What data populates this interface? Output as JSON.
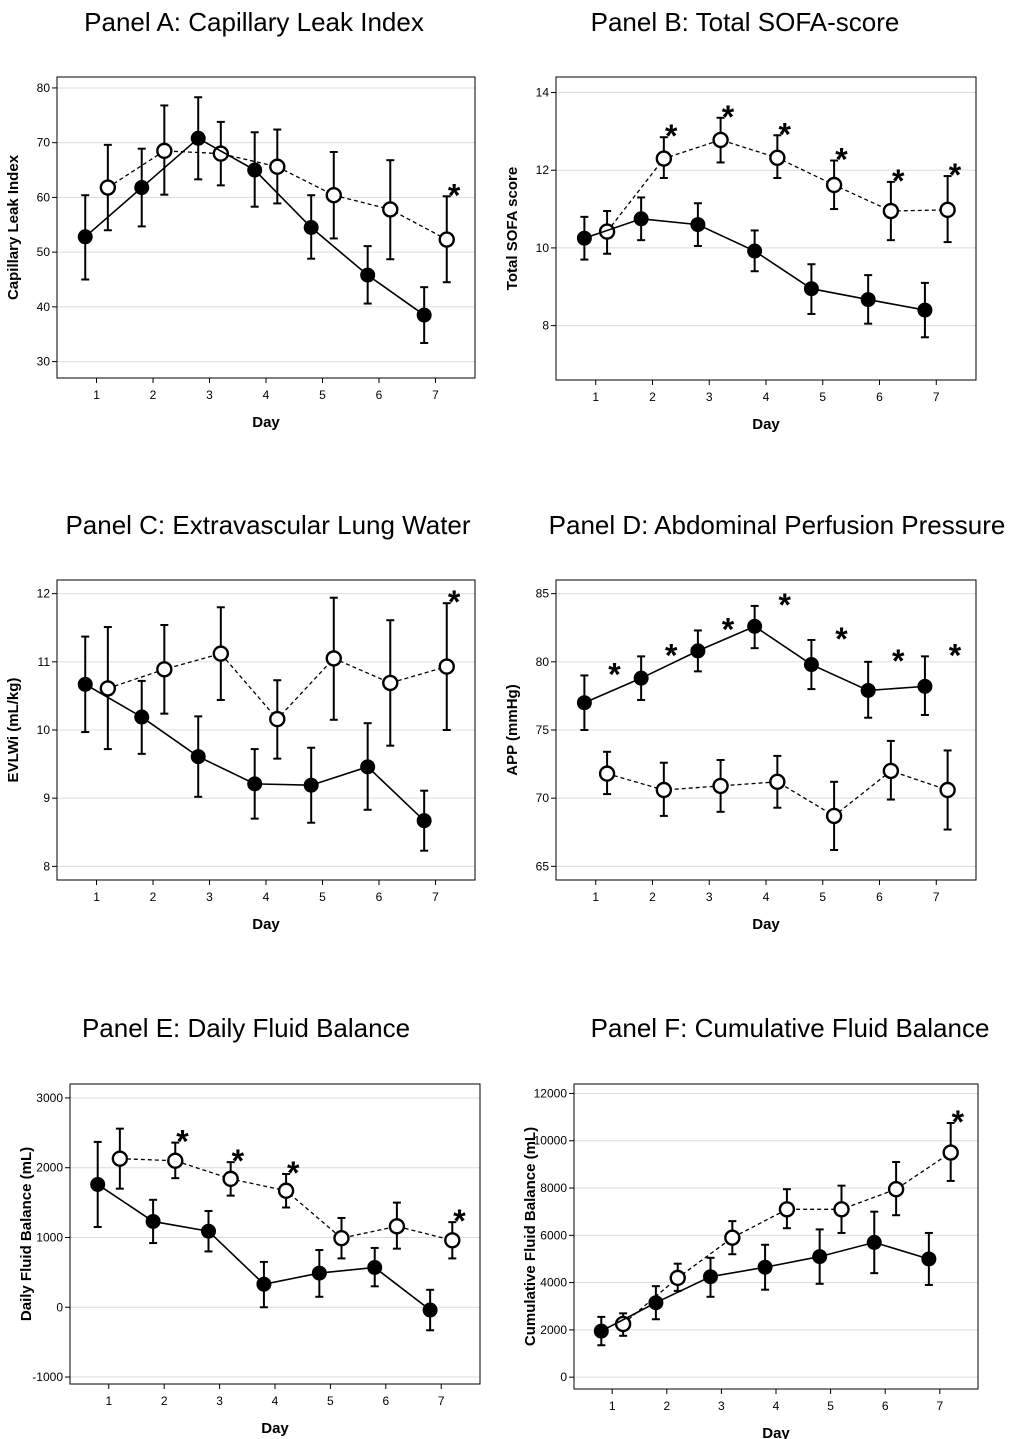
{
  "chart_data": [
    {
      "type": "line",
      "title": "Panel A: Capillary Leak Index",
      "xlabel": "Day",
      "ylabel": "Capillary Leak Index",
      "x": [
        1,
        2,
        3,
        4,
        5,
        6,
        7
      ],
      "xlim": [
        0.3,
        7.7
      ],
      "ylim": [
        27,
        82
      ],
      "yticks": [
        30,
        40,
        50,
        60,
        70,
        80
      ],
      "grid": true,
      "series": [
        {
          "style": "filled-circle-solid-line",
          "mean": [
            52.8,
            61.8,
            70.8,
            65.0,
            54.5,
            45.8,
            38.5
          ],
          "err_low": [
            45.0,
            54.7,
            63.3,
            58.3,
            48.8,
            40.6,
            33.4
          ],
          "err_high": [
            60.4,
            68.9,
            78.3,
            71.9,
            60.4,
            51.1,
            43.6
          ]
        },
        {
          "style": "open-circle-dashed-line",
          "mean": [
            61.8,
            68.5,
            68.0,
            65.6,
            60.4,
            57.8,
            52.3
          ],
          "err_low": [
            54.0,
            60.5,
            62.2,
            58.9,
            52.5,
            48.7,
            44.5
          ],
          "err_high": [
            69.6,
            76.8,
            73.8,
            72.4,
            68.3,
            66.8,
            60.2
          ]
        }
      ],
      "significance": [
        false,
        false,
        false,
        false,
        false,
        false,
        true
      ],
      "significance_marker": "*"
    },
    {
      "type": "line",
      "title": "Panel B: Total SOFA-score",
      "xlabel": "Day",
      "ylabel": "Total SOFA score",
      "x": [
        1,
        2,
        3,
        4,
        5,
        6,
        7
      ],
      "xlim": [
        0.3,
        7.7
      ],
      "ylim": [
        6.6,
        14.4
      ],
      "yticks": [
        8,
        10,
        12,
        14
      ],
      "grid": true,
      "series": [
        {
          "style": "filled-circle-solid-line",
          "mean": [
            10.25,
            10.75,
            10.6,
            9.92,
            8.95,
            8.67,
            8.4
          ],
          "err_low": [
            9.7,
            10.2,
            10.05,
            9.4,
            8.3,
            8.05,
            7.7
          ],
          "err_high": [
            10.8,
            11.3,
            11.15,
            10.45,
            9.58,
            9.3,
            9.1
          ]
        },
        {
          "style": "open-circle-dashed-line",
          "mean": [
            10.42,
            12.3,
            12.78,
            12.32,
            11.62,
            10.95,
            10.98
          ],
          "err_low": [
            9.85,
            11.8,
            12.2,
            11.8,
            11.0,
            10.2,
            10.15
          ],
          "err_high": [
            10.95,
            12.85,
            13.35,
            12.9,
            12.25,
            11.7,
            11.85
          ]
        }
      ],
      "significance": [
        false,
        true,
        true,
        true,
        true,
        true,
        true
      ],
      "significance_marker": "*"
    },
    {
      "type": "line",
      "title": "Panel C: Extravascular Lung Water",
      "xlabel": "Day",
      "ylabel": "EVLWi (mL/kg)",
      "x": [
        1,
        2,
        3,
        4,
        5,
        6,
        7
      ],
      "xlim": [
        0.3,
        7.7
      ],
      "ylim": [
        7.8,
        12.2
      ],
      "yticks": [
        8,
        9,
        10,
        11,
        12
      ],
      "grid": true,
      "series": [
        {
          "style": "filled-circle-solid-line",
          "mean": [
            10.67,
            10.19,
            9.61,
            9.21,
            9.19,
            9.46,
            8.67
          ],
          "err_low": [
            9.97,
            9.65,
            9.02,
            8.7,
            8.64,
            8.83,
            8.23
          ],
          "err_high": [
            11.37,
            10.72,
            10.2,
            9.72,
            9.74,
            10.1,
            9.11
          ]
        },
        {
          "style": "open-circle-dashed-line",
          "mean": [
            10.61,
            10.89,
            11.12,
            10.16,
            11.05,
            10.69,
            10.93
          ],
          "err_low": [
            9.72,
            10.24,
            10.44,
            9.58,
            10.15,
            9.77,
            10.0
          ],
          "err_high": [
            11.51,
            11.54,
            11.8,
            10.73,
            11.94,
            11.61,
            11.86
          ]
        }
      ],
      "significance": [
        false,
        false,
        false,
        false,
        false,
        false,
        true
      ],
      "significance_marker": "*"
    },
    {
      "type": "line",
      "title": "Panel D: Abdominal Perfusion Pressure",
      "xlabel": "Day",
      "ylabel": "APP (mmHg)",
      "x": [
        1,
        2,
        3,
        4,
        5,
        6,
        7
      ],
      "xlim": [
        0.3,
        7.7
      ],
      "ylim": [
        64,
        86
      ],
      "yticks": [
        65,
        70,
        75,
        80,
        85
      ],
      "grid": true,
      "series": [
        {
          "style": "filled-circle-solid-line",
          "mean": [
            77.0,
            78.8,
            80.8,
            82.6,
            79.8,
            77.9,
            78.2
          ],
          "err_low": [
            75.0,
            77.2,
            79.3,
            81.0,
            78.0,
            75.9,
            76.1
          ],
          "err_high": [
            79.0,
            80.4,
            82.3,
            84.1,
            81.6,
            80.0,
            80.4
          ]
        },
        {
          "style": "open-circle-dashed-line",
          "mean": [
            71.8,
            70.6,
            70.9,
            71.2,
            68.7,
            72.0,
            70.6
          ],
          "err_low": [
            70.3,
            68.7,
            69.0,
            69.3,
            66.2,
            69.9,
            67.7
          ],
          "err_high": [
            73.4,
            72.6,
            72.8,
            73.1,
            71.2,
            74.2,
            73.5
          ]
        }
      ],
      "significance": [
        true,
        true,
        true,
        true,
        true,
        true,
        true
      ],
      "significance_marker": "*"
    },
    {
      "type": "line",
      "title": "Panel E: Daily Fluid Balance",
      "xlabel": "Day",
      "ylabel": "Daily Fluid Balance (mL)",
      "x": [
        1,
        2,
        3,
        4,
        5,
        6,
        7
      ],
      "xlim": [
        0.3,
        7.7
      ],
      "ylim": [
        -1100,
        3200
      ],
      "yticks": [
        -1000,
        0,
        1000,
        2000,
        3000
      ],
      "grid": true,
      "series": [
        {
          "style": "filled-circle-solid-line",
          "mean": [
            1760,
            1230,
            1090,
            330,
            490,
            570,
            -40
          ],
          "err_low": [
            1150,
            920,
            800,
            0,
            150,
            300,
            -330
          ],
          "err_high": [
            2370,
            1540,
            1380,
            650,
            820,
            850,
            250
          ]
        },
        {
          "style": "open-circle-dashed-line",
          "mean": [
            2130,
            2100,
            1840,
            1670,
            990,
            1160,
            960
          ],
          "err_low": [
            1700,
            1850,
            1600,
            1430,
            700,
            840,
            700
          ],
          "err_high": [
            2560,
            2360,
            2080,
            1910,
            1280,
            1500,
            1220
          ]
        }
      ],
      "significance": [
        false,
        true,
        true,
        true,
        false,
        false,
        true
      ],
      "significance_marker": "*"
    },
    {
      "type": "line",
      "title": "Panel F: Cumulative Fluid Balance",
      "xlabel": "Day",
      "ylabel": "Cumulative Fluid Balance (mL)",
      "x": [
        1,
        2,
        3,
        4,
        5,
        6,
        7
      ],
      "xlim": [
        0.3,
        7.7
      ],
      "ylim": [
        -500,
        12400
      ],
      "yticks": [
        0,
        2000,
        4000,
        6000,
        8000,
        10000,
        12000
      ],
      "grid": true,
      "series": [
        {
          "style": "filled-circle-solid-line",
          "mean": [
            1950,
            3150,
            4250,
            4650,
            5100,
            5700,
            5000
          ],
          "err_low": [
            1350,
            2450,
            3400,
            3700,
            3950,
            4400,
            3900
          ],
          "err_high": [
            2550,
            3850,
            5050,
            5600,
            6250,
            7000,
            6100
          ]
        },
        {
          "style": "open-circle-dashed-line",
          "mean": [
            2250,
            4200,
            5900,
            7100,
            7100,
            7950,
            9500
          ],
          "err_low": [
            1750,
            3650,
            5200,
            6300,
            6100,
            6850,
            8300
          ],
          "err_high": [
            2700,
            4800,
            6600,
            7950,
            8100,
            9100,
            10750
          ]
        }
      ],
      "significance": [
        false,
        false,
        false,
        false,
        false,
        false,
        true
      ],
      "significance_marker": "*"
    }
  ]
}
